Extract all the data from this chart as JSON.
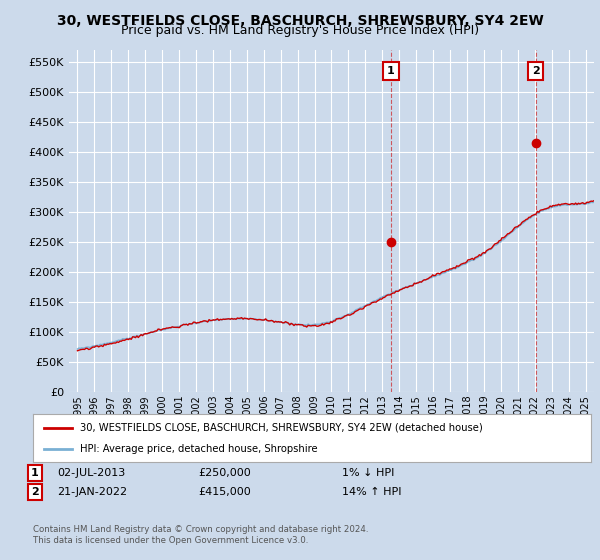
{
  "title": "30, WESTFIELDS CLOSE, BASCHURCH, SHREWSBURY, SY4 2EW",
  "subtitle": "Price paid vs. HM Land Registry's House Price Index (HPI)",
  "ylim": [
    0,
    570000
  ],
  "yticks": [
    0,
    50000,
    100000,
    150000,
    200000,
    250000,
    300000,
    350000,
    400000,
    450000,
    500000,
    550000
  ],
  "xlim_start": 1994.5,
  "xlim_end": 2025.5,
  "bg_color": "#ccdaeb",
  "plot_bg_color": "#ccdaeb",
  "grid_color": "#ffffff",
  "line_color_red": "#cc0000",
  "line_color_blue": "#7ab0d4",
  "sale1_year": 2013.5,
  "sale1_price": 250000,
  "sale1_label": "1",
  "sale2_year": 2022.05,
  "sale2_price": 415000,
  "sale2_label": "2",
  "legend_red": "30, WESTFIELDS CLOSE, BASCHURCH, SHREWSBURY, SY4 2EW (detached house)",
  "legend_blue": "HPI: Average price, detached house, Shropshire",
  "annotation1_date": "02-JUL-2013",
  "annotation1_price": "£250,000",
  "annotation1_hpi": "1% ↓ HPI",
  "annotation2_date": "21-JAN-2022",
  "annotation2_price": "£415,000",
  "annotation2_hpi": "14% ↑ HPI",
  "footnote": "Contains HM Land Registry data © Crown copyright and database right 2024.\nThis data is licensed under the Open Government Licence v3.0.",
  "title_fontsize": 10,
  "subtitle_fontsize": 9,
  "ytick_fontsize": 8,
  "xtick_fontsize": 7
}
